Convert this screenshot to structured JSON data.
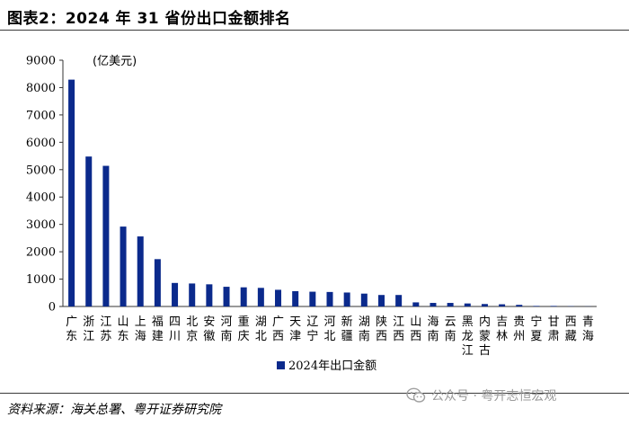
{
  "figure": {
    "title": "图表2：2024 年 31 省份出口金额排名",
    "source": "资料来源：海关总署、粤开证券研究院",
    "watermark": "公众号 · 粤开志恒宏观",
    "watermark_icon": "wechat-icon"
  },
  "chart_data": {
    "type": "bar",
    "unit_label": "(亿美元)",
    "categories": [
      [
        "广",
        "东"
      ],
      [
        "浙",
        "江"
      ],
      [
        "江",
        "苏"
      ],
      [
        "山",
        "东"
      ],
      [
        "上",
        "海"
      ],
      [
        "福",
        "建"
      ],
      [
        "四",
        "川"
      ],
      [
        "北",
        "京"
      ],
      [
        "安",
        "徽"
      ],
      [
        "河",
        "南"
      ],
      [
        "重",
        "庆"
      ],
      [
        "湖",
        "北"
      ],
      [
        "广",
        "西"
      ],
      [
        "天",
        "津"
      ],
      [
        "辽",
        "宁"
      ],
      [
        "河",
        "北"
      ],
      [
        "新",
        "疆"
      ],
      [
        "湖",
        "南"
      ],
      [
        "陕",
        "西"
      ],
      [
        "江",
        "西"
      ],
      [
        "山",
        "西"
      ],
      [
        "海",
        "南"
      ],
      [
        "云",
        "南"
      ],
      [
        "黑",
        "龙",
        "江"
      ],
      [
        "内",
        "蒙",
        "古"
      ],
      [
        "吉",
        "林"
      ],
      [
        "贵",
        "州"
      ],
      [
        "宁",
        "夏"
      ],
      [
        "甘",
        "肃"
      ],
      [
        "西",
        "藏"
      ],
      [
        "青",
        "海"
      ]
    ],
    "series": [
      {
        "name": "2024年出口金额",
        "color": "#0b2a8c",
        "values": [
          8290,
          5480,
          5140,
          2920,
          2560,
          1730,
          860,
          840,
          810,
          720,
          700,
          680,
          610,
          560,
          540,
          530,
          510,
          470,
          420,
          420,
          150,
          130,
          130,
          110,
          90,
          80,
          60,
          20,
          20,
          10,
          5
        ]
      }
    ],
    "y_ticks": [
      "0",
      "1000",
      "2000",
      "3000",
      "4000",
      "5000",
      "6000",
      "7000",
      "8000",
      "9000"
    ],
    "ylim": [
      0,
      9000
    ],
    "grid": false,
    "legend_position": "bottom"
  }
}
